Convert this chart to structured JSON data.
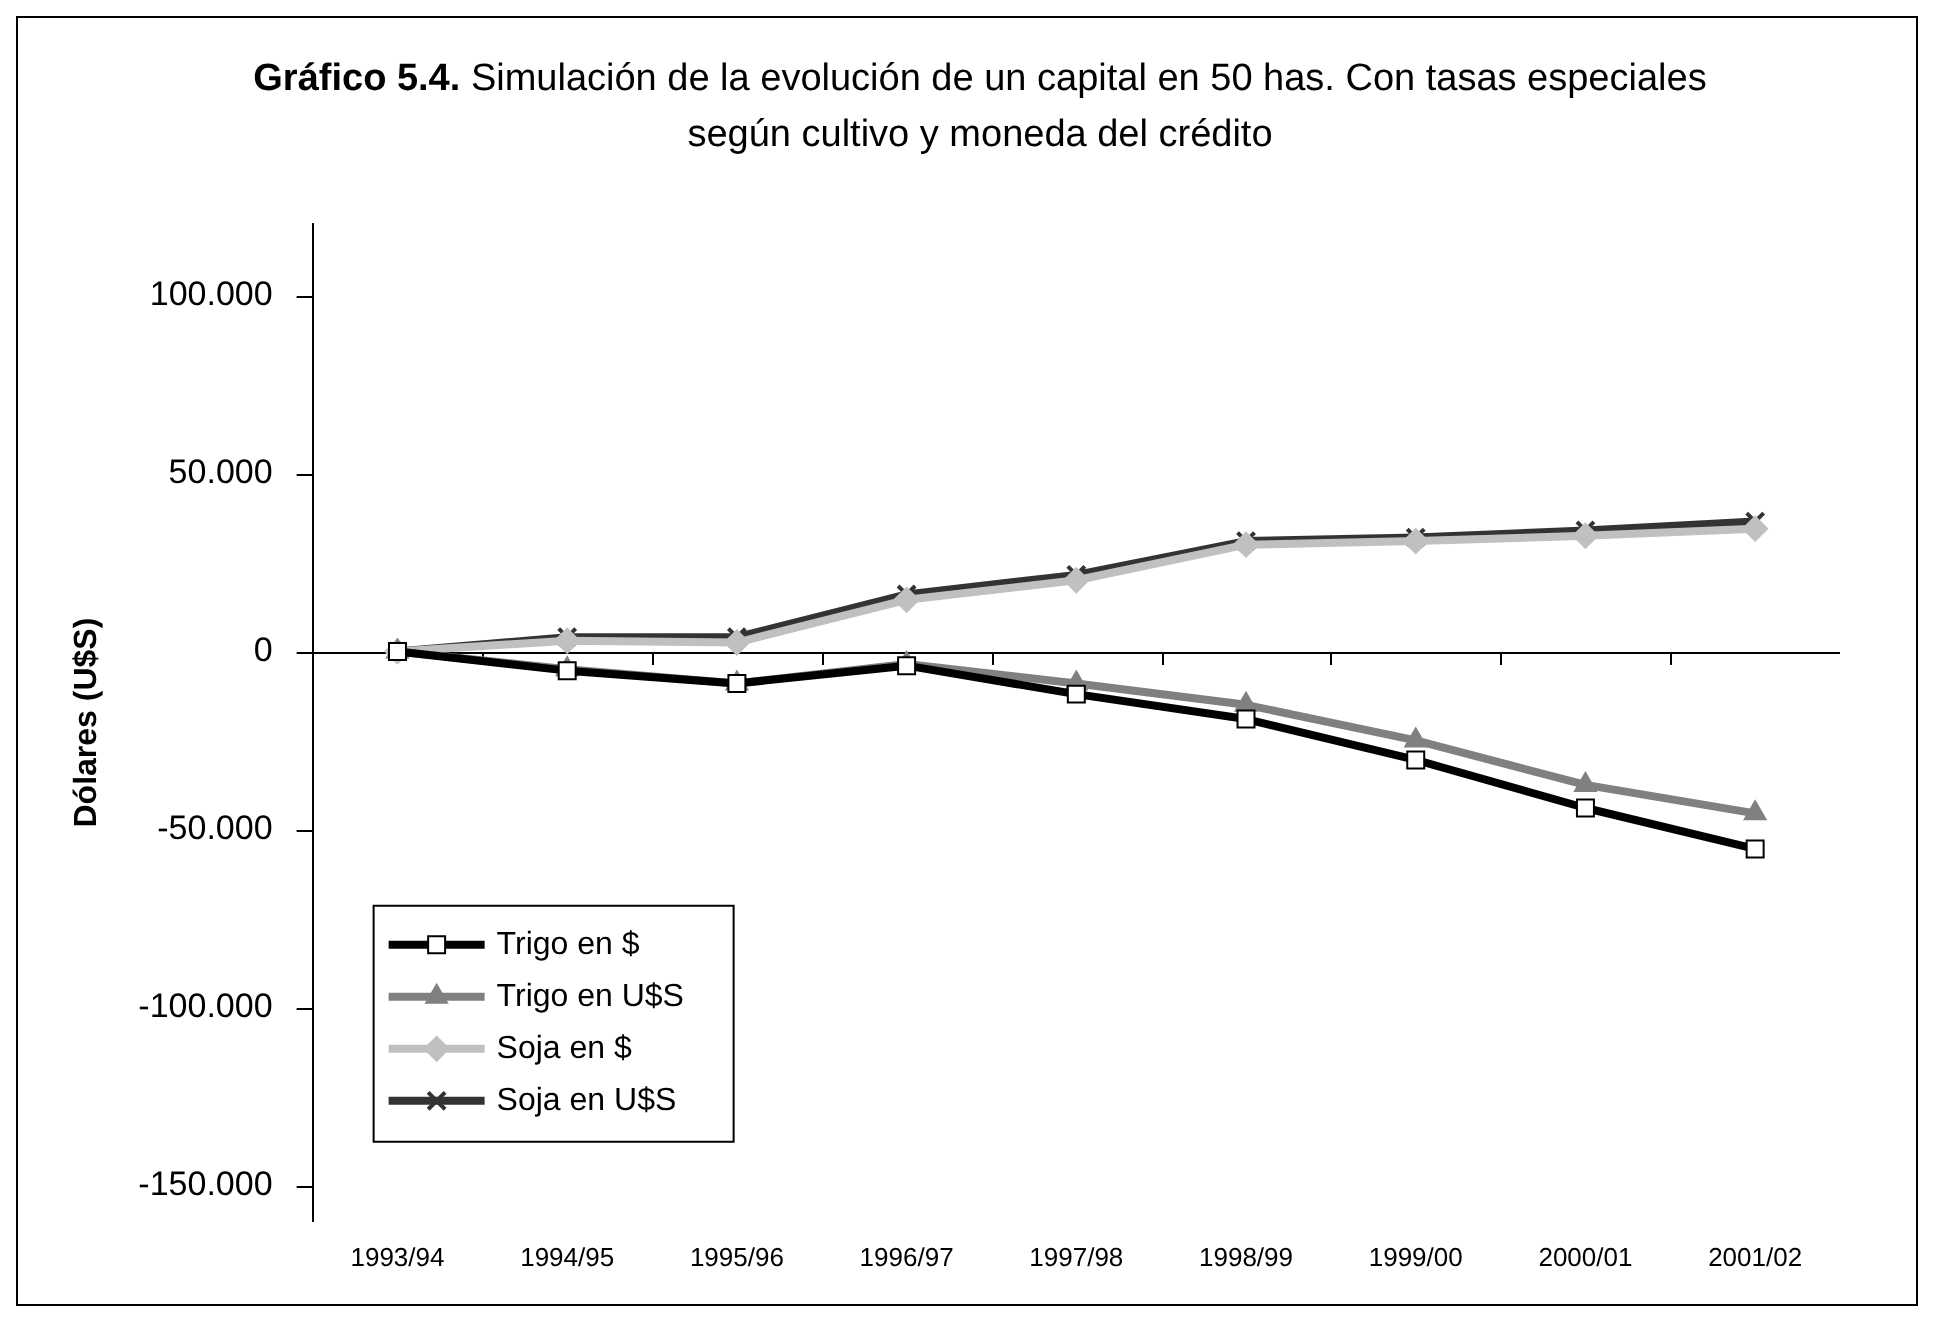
{
  "chart_data": {
    "type": "line",
    "title": "Gráfico 5.4.",
    "subtitle": "Simulación de la evolución de un capital en 50 has. Con tasas especiales según cultivo y moneda del crédito",
    "ylabel": "Dólares (U$S)",
    "categories": [
      "1993/94",
      "1994/95",
      "1995/96",
      "1996/97",
      "1997/98",
      "1998/99",
      "1999/00",
      "2000/01",
      "2001/02"
    ],
    "series": [
      {
        "name": "Trigo en $",
        "color": "#000000",
        "marker": "square",
        "values": [
          0,
          -5400,
          -9000,
          -4000,
          -12000,
          -19000,
          -30500,
          -44000,
          -55500
        ]
      },
      {
        "name": "Trigo en U$S",
        "color": "#808080",
        "marker": "triangle",
        "values": [
          0,
          -5000,
          -9000,
          -3500,
          -9000,
          -15000,
          -25000,
          -37500,
          -45500
        ]
      },
      {
        "name": "Soja en $",
        "color": "#c0c0c0",
        "marker": "diamond",
        "values": [
          0,
          3000,
          2500,
          14500,
          20000,
          30000,
          31000,
          32500,
          34500
        ]
      },
      {
        "name": "Soja en U$S",
        "color": "#333333",
        "marker": "cross",
        "values": [
          0,
          4000,
          4000,
          16000,
          21500,
          31000,
          32000,
          34000,
          36500
        ]
      }
    ],
    "ylim": [
      -160000,
      120000
    ],
    "yticks": [
      {
        "value": -150000,
        "label": "-150.000"
      },
      {
        "value": -100000,
        "label": "-100.000"
      },
      {
        "value": -50000,
        "label": "-50.000"
      },
      0,
      {
        "value": 50000,
        "label": "50.000"
      },
      {
        "value": 100000,
        "label": "100.000"
      }
    ],
    "ref_lines": [
      {
        "axis": "y",
        "value": 0,
        "color": "#000000"
      }
    ],
    "grid": false,
    "legend": "bottom left"
  }
}
